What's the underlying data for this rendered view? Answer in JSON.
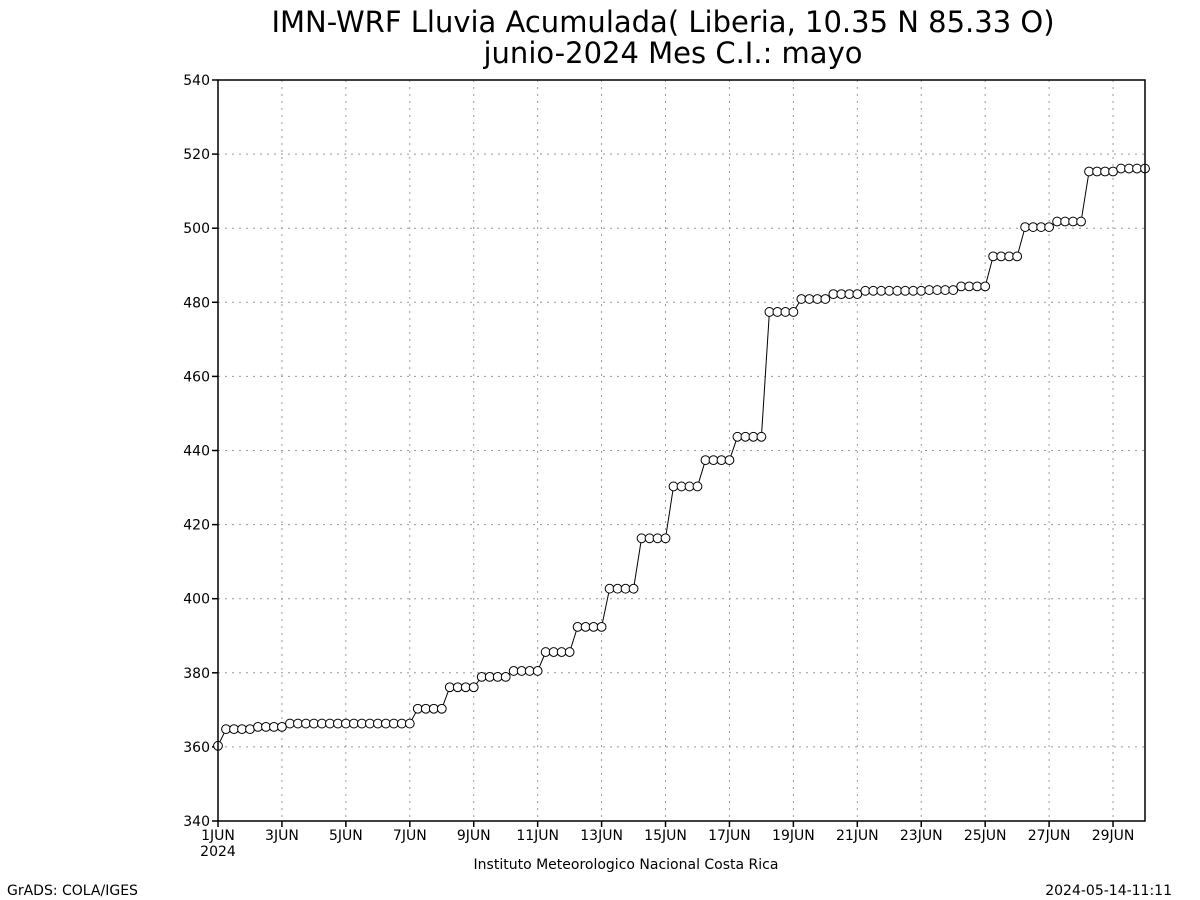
{
  "header": {
    "title_line1": "IMN-WRF  Lluvia Acumulada( Liberia, 10.35  N 85.33  O)",
    "title_line2": "junio-2024 Mes C.I.: mayo"
  },
  "footer": {
    "institute": "Instituto Meteorologico Nacional Costa Rica",
    "grads_credit": "GrADS: COLA/IGES",
    "timestamp": "2024-05-14-11:11"
  },
  "chart_data": {
    "type": "line",
    "title": "IMN-WRF  Lluvia Acumulada( Liberia, 10.35  N 85.33  O)",
    "subtitle": "junio-2024 Mes C.I.: mayo",
    "xlabel": "",
    "ylabel": "",
    "x_unit": "day of June 2024 (6-hourly)",
    "xlim": [
      1,
      30
    ],
    "ylim": [
      340,
      540
    ],
    "grid": true,
    "marker": "open-circle",
    "y_ticks": [
      340,
      360,
      380,
      400,
      420,
      440,
      460,
      480,
      500,
      520,
      540
    ],
    "x_ticks": [
      {
        "day": 1,
        "label": "1JUN",
        "sublabel": "2024"
      },
      {
        "day": 3,
        "label": "3JUN"
      },
      {
        "day": 5,
        "label": "5JUN"
      },
      {
        "day": 7,
        "label": "7JUN"
      },
      {
        "day": 9,
        "label": "9JUN"
      },
      {
        "day": 11,
        "label": "11JUN"
      },
      {
        "day": 13,
        "label": "13JUN"
      },
      {
        "day": 15,
        "label": "15JUN"
      },
      {
        "day": 17,
        "label": "17JUN"
      },
      {
        "day": 19,
        "label": "19JUN"
      },
      {
        "day": 21,
        "label": "21JUN"
      },
      {
        "day": 23,
        "label": "23JUN"
      },
      {
        "day": 25,
        "label": "25JUN"
      },
      {
        "day": 27,
        "label": "27JUN"
      },
      {
        "day": 29,
        "label": "29JUN"
      }
    ],
    "series": [
      {
        "x_start_day": 1,
        "x_step_days": 0.25,
        "values": [
          360.3,
          364.8,
          364.8,
          364.8,
          364.8,
          365.4,
          365.4,
          365.4,
          365.4,
          366.3,
          366.3,
          366.3,
          366.3,
          366.3,
          366.3,
          366.3,
          366.3,
          366.3,
          366.3,
          366.3,
          366.3,
          366.3,
          366.3,
          366.3,
          366.3,
          370.3,
          370.3,
          370.3,
          370.3,
          376.1,
          376.1,
          376.1,
          376.1,
          378.9,
          378.9,
          378.9,
          378.9,
          380.5,
          380.5,
          380.5,
          380.5,
          385.6,
          385.6,
          385.6,
          385.6,
          392.4,
          392.4,
          392.4,
          392.4,
          402.7,
          402.7,
          402.7,
          402.7,
          416.3,
          416.3,
          416.3,
          416.3,
          430.3,
          430.3,
          430.3,
          430.3,
          437.4,
          437.4,
          437.4,
          437.4,
          443.7,
          443.7,
          443.7,
          443.7,
          477.4,
          477.4,
          477.4,
          477.4,
          480.9,
          480.9,
          480.9,
          480.9,
          482.2,
          482.2,
          482.2,
          482.2,
          483.1,
          483.1,
          483.1,
          483.1,
          483.1,
          483.1,
          483.1,
          483.1,
          483.3,
          483.3,
          483.3,
          483.3,
          484.3,
          484.3,
          484.3,
          484.3,
          492.4,
          492.4,
          492.4,
          492.4,
          500.3,
          500.3,
          500.3,
          500.3,
          501.8,
          501.8,
          501.8,
          501.8,
          515.3,
          515.3,
          515.3,
          515.3,
          516.1,
          516.1,
          516.1,
          516.1
        ]
      }
    ]
  }
}
